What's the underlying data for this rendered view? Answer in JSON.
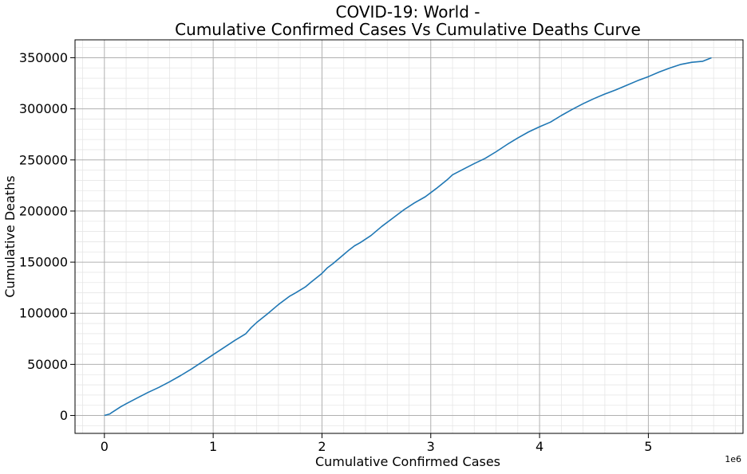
{
  "chart_data": {
    "type": "line",
    "title_line1": "COVID-19: World -",
    "title_line2": "Cumulative Confirmed Cases Vs Cumulative Deaths Curve",
    "xlabel": "Cumulative Confirmed Cases",
    "ylabel": "Cumulative Deaths",
    "x_offset_label": "1e6",
    "x_scale_factor": 1000000,
    "xlim": [
      -270000,
      5870000
    ],
    "ylim": [
      -17500,
      367500
    ],
    "x_ticks": [
      0,
      1000000,
      2000000,
      3000000,
      4000000,
      5000000
    ],
    "x_tick_labels": [
      "0",
      "1",
      "2",
      "3",
      "4",
      "5"
    ],
    "y_ticks": [
      0,
      50000,
      100000,
      150000,
      200000,
      250000,
      300000,
      350000
    ],
    "y_tick_labels": [
      "0",
      "50000",
      "100000",
      "150000",
      "200000",
      "250000",
      "300000",
      "350000"
    ],
    "grid": true,
    "minor_grid": true,
    "line_color": "#1f77b4",
    "series": [
      {
        "x": [
          0,
          50000,
          70000,
          100000,
          150000,
          200000,
          300000,
          400000,
          500000,
          600000,
          700000,
          800000,
          900000,
          1000000,
          1100000,
          1200000,
          1300000,
          1350000,
          1400000,
          1500000,
          1600000,
          1700000,
          1750000,
          1850000,
          1900000,
          2000000,
          2050000,
          2100000,
          2200000,
          2250000,
          2300000,
          2350000,
          2450000,
          2550000,
          2650000,
          2750000,
          2850000,
          2950000,
          3050000,
          3150000,
          3200000,
          3300000,
          3400000,
          3500000,
          3600000,
          3700000,
          3800000,
          3900000,
          4000000,
          4100000,
          4200000,
          4300000,
          4400000,
          4500000,
          4600000,
          4700000,
          4800000,
          4900000,
          5000000,
          5100000,
          5200000,
          5300000,
          5400000,
          5500000,
          5580000
        ],
        "y": [
          0,
          1500,
          3000,
          5000,
          8500,
          11500,
          17000,
          22500,
          27500,
          33000,
          39000,
          45500,
          52500,
          59500,
          66500,
          73500,
          80000,
          86000,
          91000,
          99500,
          108500,
          116500,
          119500,
          126000,
          130500,
          139000,
          144500,
          148500,
          157500,
          162000,
          166000,
          169000,
          176000,
          185000,
          193000,
          201000,
          208000,
          214000,
          222000,
          230500,
          235500,
          241000,
          246500,
          251500,
          258000,
          265000,
          271500,
          277500,
          282500,
          287000,
          293500,
          299500,
          305000,
          310000,
          314500,
          318500,
          323000,
          327500,
          331500,
          336000,
          340000,
          343500,
          345500,
          346500,
          350000
        ]
      }
    ]
  }
}
